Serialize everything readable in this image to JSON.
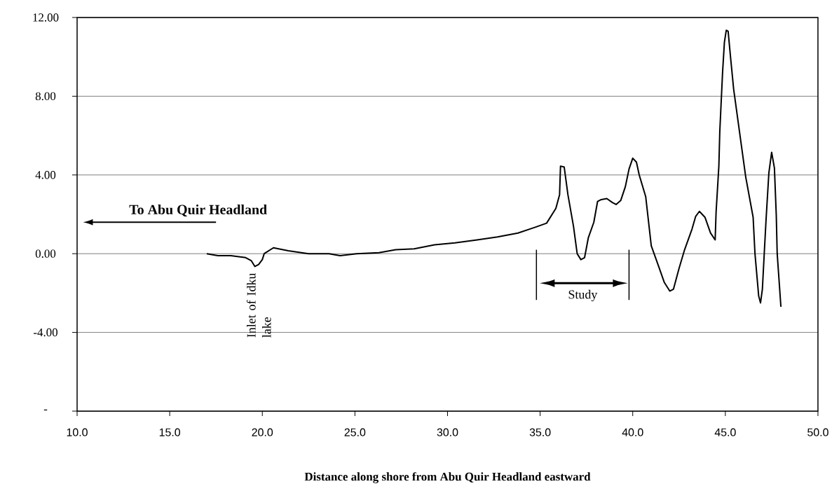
{
  "chart_data": {
    "type": "line",
    "xlabel": "Distance along shore from Abu Quir Headland eastward",
    "x": [
      17.0,
      17.6,
      18.3,
      19.1,
      19.4,
      19.6,
      19.8,
      20.0,
      20.1,
      20.6,
      21.4,
      22.5,
      23.6,
      24.2,
      25.1,
      26.3,
      27.2,
      28.2,
      29.3,
      30.4,
      31.6,
      32.7,
      33.8,
      34.6,
      35.35,
      35.85,
      36.05,
      36.1,
      36.3,
      36.5,
      36.8,
      37.0,
      37.2,
      37.4,
      37.6,
      37.9,
      38.1,
      38.3,
      38.6,
      38.9,
      39.1,
      39.35,
      39.6,
      39.8,
      40.0,
      40.2,
      40.35,
      40.7,
      41.0,
      41.4,
      41.7,
      42.0,
      42.2,
      42.5,
      42.8,
      43.2,
      43.4,
      43.6,
      43.9,
      44.2,
      44.45,
      44.5,
      44.65,
      44.7,
      44.85,
      44.95,
      45.05,
      45.15,
      45.3,
      45.45,
      46.1,
      46.5,
      46.6,
      46.8,
      46.9,
      47.0,
      47.1,
      47.2,
      47.35,
      47.5,
      47.65,
      47.75,
      47.8,
      48.0
    ],
    "values": [
      0.0,
      -0.1,
      -0.1,
      -0.2,
      -0.35,
      -0.65,
      -0.55,
      -0.3,
      0.0,
      0.3,
      0.15,
      0.0,
      0.0,
      -0.1,
      0.0,
      0.05,
      0.2,
      0.25,
      0.45,
      0.55,
      0.7,
      0.85,
      1.05,
      1.3,
      1.55,
      2.3,
      3.0,
      4.45,
      4.4,
      3.0,
      1.4,
      0.0,
      -0.3,
      -0.2,
      0.8,
      1.6,
      2.65,
      2.75,
      2.8,
      2.6,
      2.5,
      2.7,
      3.4,
      4.3,
      4.85,
      4.65,
      4.0,
      2.9,
      0.4,
      -0.65,
      -1.45,
      -1.9,
      -1.8,
      -0.75,
      0.2,
      1.25,
      1.9,
      2.15,
      1.85,
      1.05,
      0.7,
      2.1,
      4.45,
      6.2,
      9.2,
      10.75,
      11.35,
      11.3,
      9.8,
      8.35,
      3.9,
      1.85,
      0.0,
      -2.15,
      -2.5,
      -1.8,
      0.0,
      1.75,
      4.1,
      5.15,
      4.35,
      1.95,
      0.0,
      -2.7
    ],
    "color": "#000000",
    "xlim": [
      10,
      50
    ],
    "ylim": [
      -8,
      12
    ],
    "xticks": [
      {
        "value": 10,
        "label": "10.0"
      },
      {
        "value": 15,
        "label": "15.0"
      },
      {
        "value": 20,
        "label": "20.0"
      },
      {
        "value": 25,
        "label": "25.0"
      },
      {
        "value": 30,
        "label": "30.0"
      },
      {
        "value": 35,
        "label": "35.0"
      },
      {
        "value": 40,
        "label": "40.0"
      },
      {
        "value": 45,
        "label": "45.0"
      },
      {
        "value": 50,
        "label": "50.0"
      }
    ],
    "yticks": [
      {
        "value": -8,
        "label": "-"
      },
      {
        "value": -4,
        "label": "-4.00"
      },
      {
        "value": 0,
        "label": "0.00"
      },
      {
        "value": 4,
        "label": "4.00"
      },
      {
        "value": 8,
        "label": "8.00"
      },
      {
        "value": 12,
        "label": "12.00"
      }
    ],
    "grid": "y",
    "ref_lines": [
      {
        "axis": "x",
        "value": 34.8
      },
      {
        "axis": "x",
        "value": 39.8
      }
    ],
    "annotations": [
      "To Abu Quir Headland",
      {
        "text": "Inlet of Idku lake",
        "x": 19.6,
        "y": -0.6
      },
      "Study"
    ]
  }
}
